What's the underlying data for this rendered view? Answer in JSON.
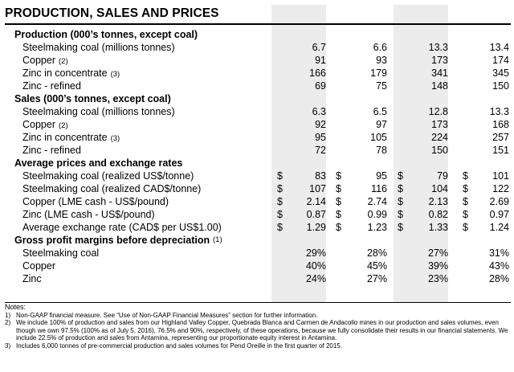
{
  "title": "PRODUCTION, SALES AND PRICES",
  "sections": [
    {
      "key": "production",
      "header": "Production (000’s tonnes, except coal)",
      "header_fn": "",
      "dollar": false,
      "rows": [
        {
          "label": "Steelmaking coal (millions tonnes)",
          "fn": "",
          "values": [
            "6.7",
            "6.6",
            "13.3",
            "13.4"
          ]
        },
        {
          "label": "Copper",
          "fn": "(2)",
          "values": [
            "91",
            "93",
            "173",
            "174"
          ]
        },
        {
          "label": "Zinc in concentrate",
          "fn": "(3)",
          "values": [
            "166",
            "179",
            "341",
            "345"
          ]
        },
        {
          "label": "Zinc - refined",
          "fn": "",
          "values": [
            "69",
            "75",
            "148",
            "150"
          ]
        }
      ]
    },
    {
      "key": "sales",
      "header": "Sales (000’s tonnes, except coal)",
      "header_fn": "",
      "dollar": false,
      "rows": [
        {
          "label": "Steelmaking coal (millions tonnes)",
          "fn": "",
          "values": [
            "6.3",
            "6.5",
            "12.8",
            "13.3"
          ]
        },
        {
          "label": "Copper",
          "fn": "(2)",
          "values": [
            "92",
            "97",
            "173",
            "168"
          ]
        },
        {
          "label": "Zinc in concentrate",
          "fn": "(3)",
          "values": [
            "95",
            "105",
            "224",
            "257"
          ]
        },
        {
          "label": "Zinc - refined",
          "fn": "",
          "values": [
            "72",
            "78",
            "150",
            "151"
          ]
        }
      ]
    },
    {
      "key": "prices",
      "header": "Average prices and exchange rates",
      "header_fn": "",
      "dollar": true,
      "dollar_sign": "$",
      "rows": [
        {
          "label": "Steelmaking coal (realized US$/tonne)",
          "fn": "",
          "values": [
            "83",
            "95",
            "79",
            "101"
          ]
        },
        {
          "label": "Steelmaking coal (realized CAD$/tonne)",
          "fn": "",
          "values": [
            "107",
            "116",
            "104",
            "122"
          ]
        },
        {
          "label": "Copper (LME cash - US$/pound)",
          "fn": "",
          "values": [
            "2.14",
            "2.74",
            "2.13",
            "2.69"
          ]
        },
        {
          "label": "Zinc (LME cash - US$/pound)",
          "fn": "",
          "values": [
            "0.87",
            "0.99",
            "0.82",
            "0.97"
          ]
        },
        {
          "label": "Average exchange rate (CAD$ per US$1.00)",
          "fn": "",
          "values": [
            "1.29",
            "1.23",
            "1.33",
            "1.24"
          ]
        }
      ]
    },
    {
      "key": "margins",
      "header": "Gross profit margins before depreciation",
      "header_fn": "(1)",
      "dollar": false,
      "rows": [
        {
          "label": "Steelmaking coal",
          "fn": "",
          "values": [
            "29%",
            "28%",
            "27%",
            "31%"
          ]
        },
        {
          "label": "Copper",
          "fn": "",
          "values": [
            "40%",
            "45%",
            "39%",
            "43%"
          ]
        },
        {
          "label": "Zinc",
          "fn": "",
          "values": [
            "24%",
            "27%",
            "23%",
            "28%"
          ]
        }
      ]
    }
  ],
  "notes": {
    "heading": "Notes:",
    "items": [
      {
        "num": "1)",
        "text": "Non-GAAP financial measure. See “Use of Non-GAAP Financial Measures” section for further information."
      },
      {
        "num": "2)",
        "text": "We include 100% of production and sales from our Highland Valley Copper, Quebrada Blanca and Carmen de Andacollo mines in our production and sales volumes, even though we own 97.5% (100% as of July 5, 2016), 76.5% and 90%, respectively, of these operations, because we fully consolidate their results in our financial statements. We include 22.5% of production and sales from Antamina, representing our proportionate equity interest in Antamina."
      },
      {
        "num": "3)",
        "text": "Includes 6,000 tonnes of pre-commercial production and sales volumes for Pend Oreille in the first quarter of 2015."
      }
    ]
  }
}
